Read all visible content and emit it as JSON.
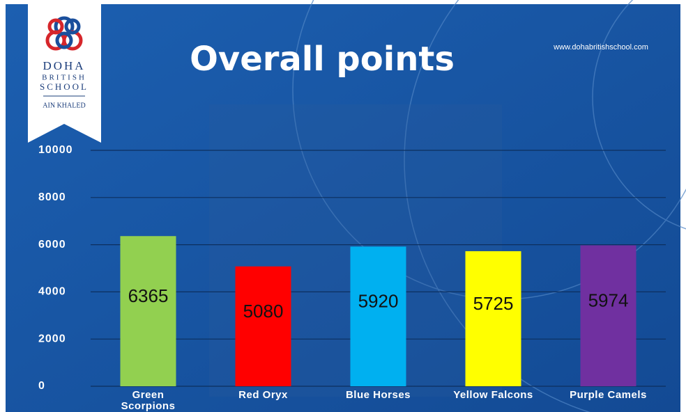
{
  "chart_data": {
    "type": "bar",
    "title": "Overall points",
    "logo": {
      "name_lines": [
        "DOHA",
        "BRITISH",
        "SCHOOL"
      ],
      "campus": "AIN KHALED"
    },
    "website": "www.dohabritishschool.com",
    "categories": [
      "Green Scorpions",
      "Red Oryx",
      "Blue Horses",
      "Yellow Falcons",
      "Purple Camels"
    ],
    "values": [
      6365,
      5080,
      5920,
      5725,
      5974
    ],
    "colors": [
      "#92d050",
      "#ff0000",
      "#00b0f0",
      "#ffff00",
      "#7030a0"
    ],
    "ylim": [
      0,
      10000
    ],
    "yticks": [
      0,
      2000,
      4000,
      6000,
      8000,
      10000
    ],
    "grid": true
  }
}
